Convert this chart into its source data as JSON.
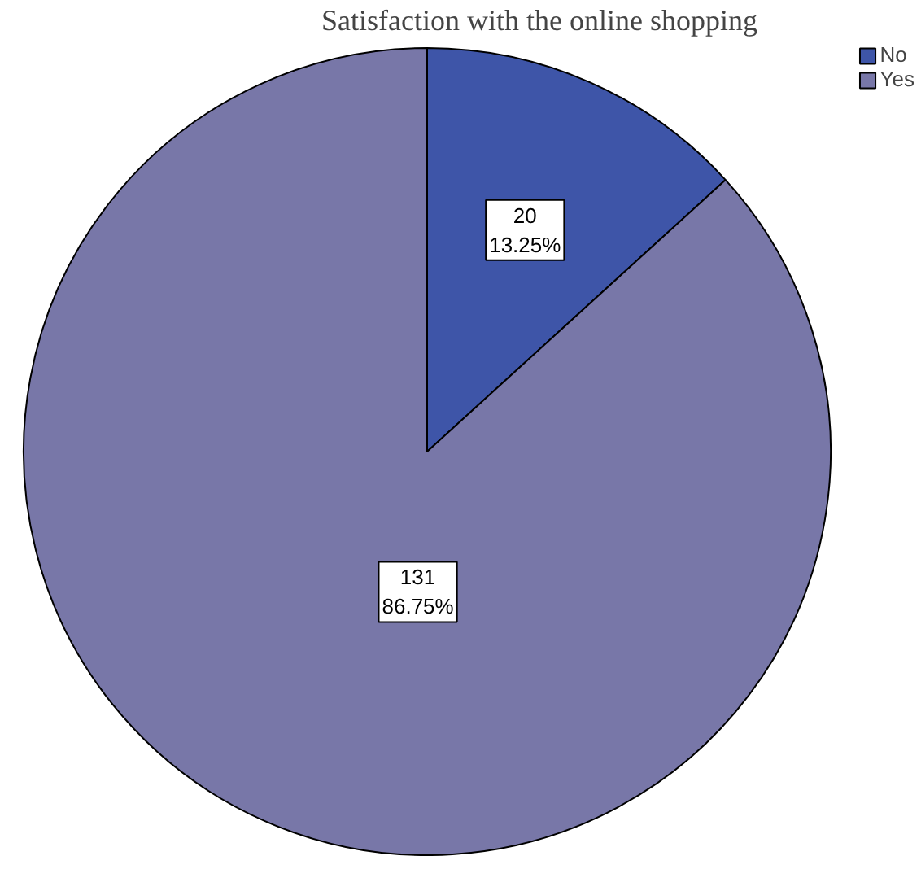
{
  "chart_data": {
    "type": "pie",
    "title": "Satisfaction with the online shopping",
    "categories": [
      "No",
      "Yes"
    ],
    "values": [
      20,
      131
    ],
    "colors": [
      "#3e55a8",
      "#7877a8"
    ],
    "value_labels": [
      "20\n13.25%",
      "131\n86.75%"
    ],
    "legend": "top right"
  }
}
